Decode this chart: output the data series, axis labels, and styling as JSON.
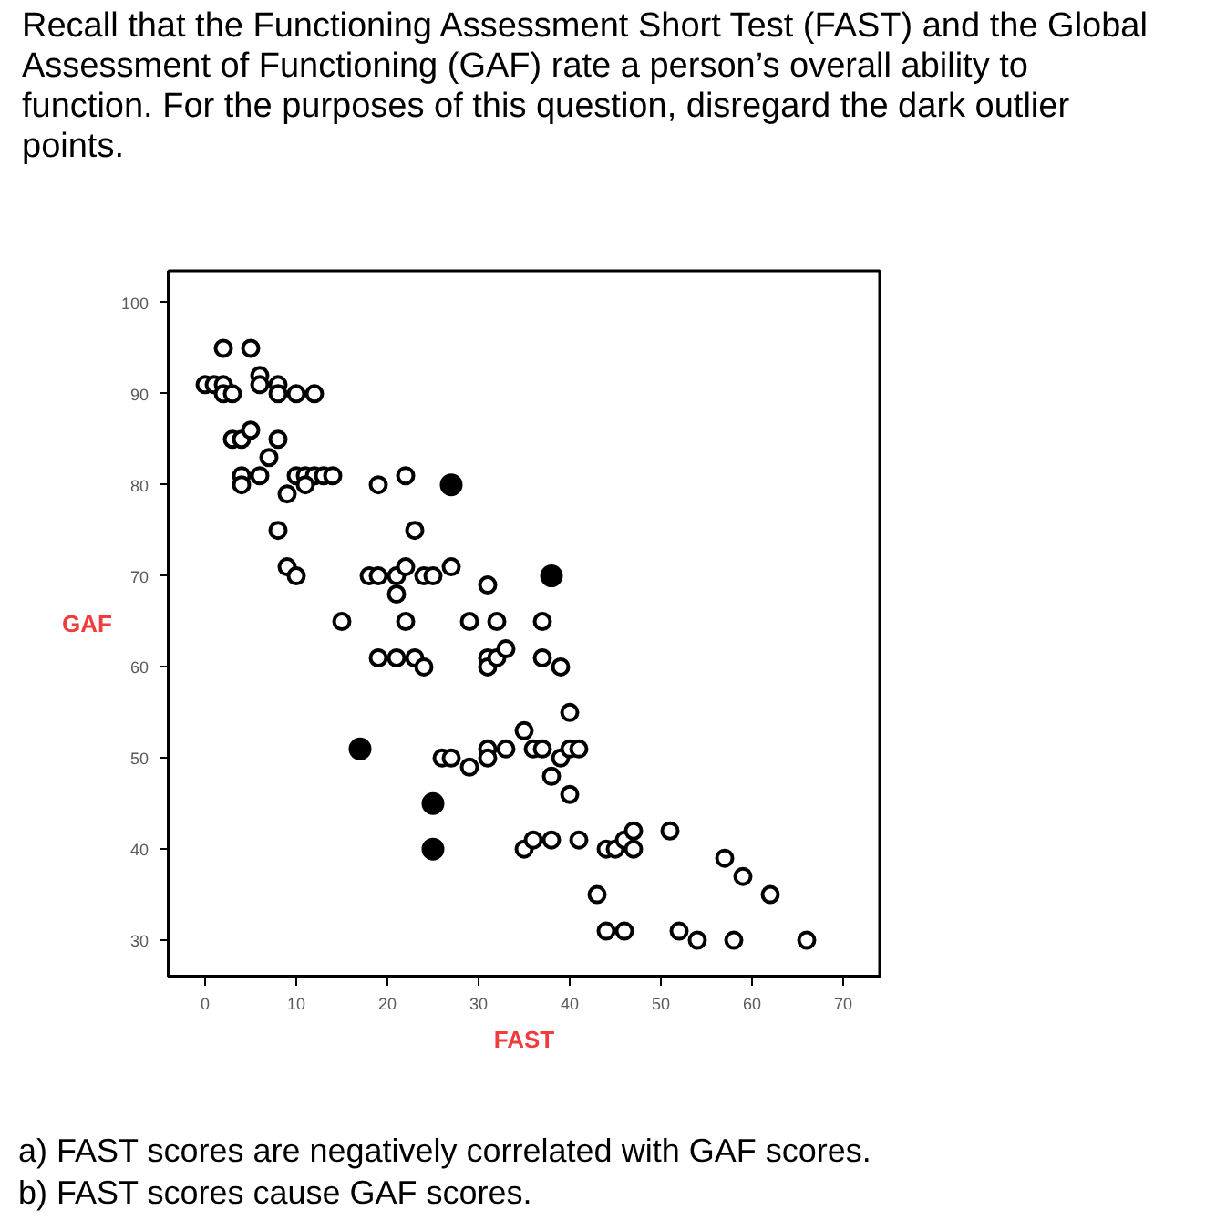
{
  "chart_data": {
    "type": "scatter",
    "title": "Recall that the Functioning Assessment Short Test (FAST) and the Global Assessment of Functioning (GAF) rate a person’s overall ability to function. For the purposes of this question, disregard the dark outlier points.",
    "xlabel": "FAST",
    "ylabel": "GAF",
    "annotations": [
      "a) FAST scores are negatively correlated with GAF scores.",
      "b) FAST scores cause GAF scores."
    ],
    "xlim": [
      -4,
      74
    ],
    "ylim": [
      26,
      103.5
    ],
    "xticks": [
      0,
      10,
      20,
      30,
      40,
      50,
      60,
      70
    ],
    "yticks": [
      30,
      40,
      50,
      60,
      70,
      80,
      90,
      100
    ],
    "marker": "circle",
    "series": [
      {
        "color": "#000000",
        "x": [
          2,
          5,
          0,
          1,
          2,
          2,
          3,
          6,
          6,
          8,
          8,
          10,
          12,
          3,
          4,
          5,
          8,
          7,
          4,
          4,
          6,
          9,
          10,
          11,
          12,
          13,
          14,
          11,
          19,
          22,
          8,
          23,
          9,
          10,
          18,
          19,
          21,
          22,
          21,
          24,
          25,
          27,
          31,
          15,
          22,
          29,
          32,
          37,
          19,
          21,
          23,
          24,
          31,
          31,
          32,
          33,
          37,
          39,
          40,
          35,
          26,
          27,
          29,
          31,
          31,
          33,
          36,
          37,
          39,
          40,
          41,
          38,
          40,
          35,
          36,
          38,
          41,
          44,
          45,
          46,
          47,
          47,
          51,
          57,
          59,
          62,
          43,
          44,
          46,
          52,
          54,
          58,
          66
        ],
        "values": [
          95,
          95,
          91,
          91,
          91,
          90,
          90,
          92,
          91,
          91,
          90,
          90,
          90,
          85,
          85,
          86,
          85,
          83,
          81,
          80,
          81,
          79,
          81,
          81,
          81,
          81,
          81,
          80,
          80,
          81,
          75,
          75,
          71,
          70,
          70,
          70,
          70,
          71,
          68,
          70,
          70,
          71,
          69,
          65,
          65,
          65,
          65,
          65,
          61,
          61,
          61,
          60,
          61,
          60,
          61,
          62,
          61,
          60,
          55,
          53,
          50,
          50,
          49,
          51,
          50,
          51,
          51,
          51,
          50,
          51,
          51,
          48,
          46,
          40,
          41,
          41,
          41,
          40,
          40,
          41,
          42,
          40,
          42,
          39,
          37,
          35,
          35,
          31,
          31,
          31,
          30,
          30,
          30
        ]
      },
      {
        "color": "#000000",
        "x": [
          27,
          38,
          17,
          25,
          25
        ],
        "values": [
          80,
          70,
          51,
          45,
          40
        ]
      }
    ]
  }
}
